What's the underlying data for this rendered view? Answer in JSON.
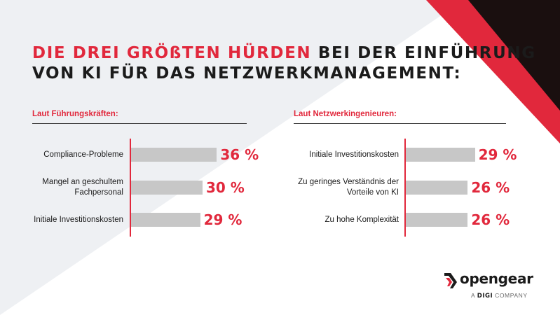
{
  "title": {
    "highlight": "DIE DREI GRÖßTEN HÜRDEN",
    "rest_line1": " BEI DER EINFÜHRUNG",
    "line2": "VON KI FÜR DAS NETZWERKMANAGEMENT:"
  },
  "colors": {
    "accent": "#e1283c",
    "bar": "#c7c7c7",
    "text": "#1b1b1b",
    "bg_shape": "#eef0f3"
  },
  "chart_data": [
    {
      "type": "bar",
      "orientation": "horizontal",
      "title": "Laut Führungskräften:",
      "categories": [
        "Compliance-Probleme",
        "Mangel an geschultem Fachpersonal",
        "Initiale Investitionskosten"
      ],
      "values": [
        36,
        30,
        29
      ],
      "value_labels": [
        "36 %",
        "30 %",
        "29 %"
      ],
      "unit": "%"
    },
    {
      "type": "bar",
      "orientation": "horizontal",
      "title": "Laut Netzwerkingenieuren:",
      "categories": [
        "Initiale Investitionskosten",
        "Zu geringes Verständnis der Vorteile von KI",
        "Zu hohe Komplexität"
      ],
      "values": [
        29,
        26,
        26
      ],
      "value_labels": [
        "29 %",
        "26 %",
        "26 %"
      ],
      "unit": "%"
    }
  ],
  "logo": {
    "name": "opengear",
    "tagline_prefix": "A",
    "tagline_brand": "DIGI",
    "tagline_suffix": "COMPANY"
  }
}
